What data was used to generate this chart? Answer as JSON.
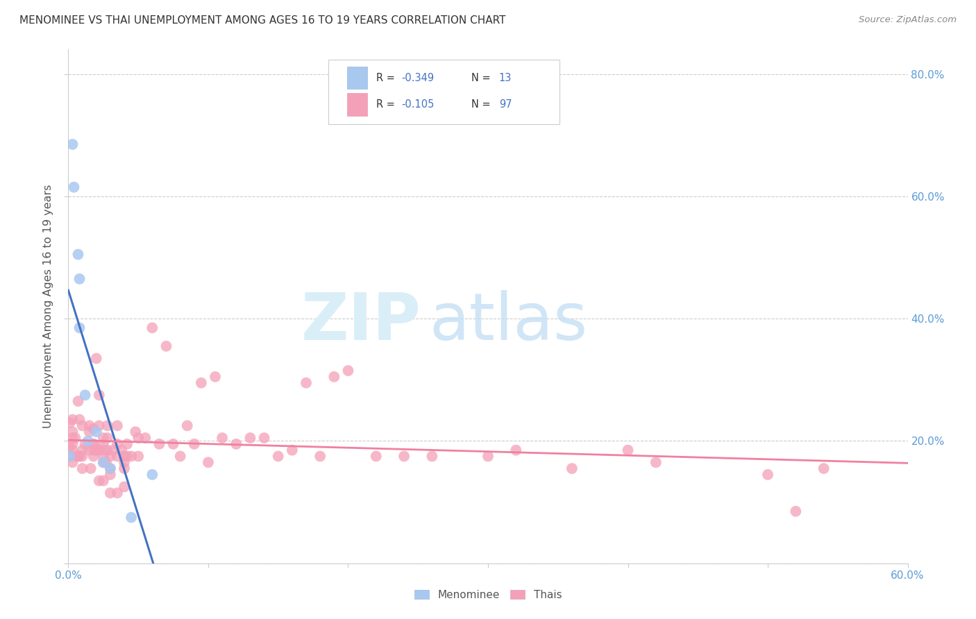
{
  "title": "MENOMINEE VS THAI UNEMPLOYMENT AMONG AGES 16 TO 19 YEARS CORRELATION CHART",
  "source": "Source: ZipAtlas.com",
  "ylabel": "Unemployment Among Ages 16 to 19 years",
  "menominee_color": "#a8c8f0",
  "thai_color": "#f4a0b8",
  "menominee_line_color": "#4472C4",
  "thai_line_color": "#f080a0",
  "dash_color": "#b0b0b0",
  "xmin": 0.0,
  "xmax": 0.6,
  "ymin": 0.0,
  "ymax": 0.84,
  "x_ticks": [
    0.0,
    0.1,
    0.2,
    0.3,
    0.4,
    0.5,
    0.6
  ],
  "y_ticks": [
    0.0,
    0.2,
    0.4,
    0.6,
    0.8
  ],
  "y_tick_labels": [
    "",
    "20.0%",
    "40.0%",
    "60.0%",
    "80.0%"
  ],
  "menominee_points_x": [
    0.001,
    0.003,
    0.004,
    0.007,
    0.008,
    0.008,
    0.012,
    0.014,
    0.02,
    0.025,
    0.03,
    0.045,
    0.06
  ],
  "menominee_points_y": [
    0.175,
    0.685,
    0.615,
    0.505,
    0.465,
    0.385,
    0.275,
    0.2,
    0.215,
    0.165,
    0.155,
    0.075,
    0.145
  ],
  "thai_points_x": [
    0.001,
    0.001,
    0.001,
    0.003,
    0.003,
    0.003,
    0.003,
    0.003,
    0.003,
    0.005,
    0.006,
    0.007,
    0.007,
    0.008,
    0.008,
    0.01,
    0.01,
    0.01,
    0.01,
    0.012,
    0.015,
    0.015,
    0.015,
    0.016,
    0.018,
    0.018,
    0.018,
    0.018,
    0.018,
    0.02,
    0.02,
    0.022,
    0.022,
    0.022,
    0.022,
    0.025,
    0.025,
    0.025,
    0.025,
    0.025,
    0.025,
    0.027,
    0.028,
    0.028,
    0.028,
    0.03,
    0.03,
    0.03,
    0.03,
    0.032,
    0.035,
    0.035,
    0.035,
    0.035,
    0.038,
    0.04,
    0.04,
    0.04,
    0.04,
    0.042,
    0.042,
    0.045,
    0.048,
    0.05,
    0.05,
    0.055,
    0.06,
    0.065,
    0.07,
    0.075,
    0.08,
    0.085,
    0.09,
    0.095,
    0.1,
    0.105,
    0.11,
    0.12,
    0.13,
    0.14,
    0.15,
    0.16,
    0.17,
    0.18,
    0.19,
    0.2,
    0.22,
    0.24,
    0.26,
    0.3,
    0.32,
    0.36,
    0.4,
    0.42,
    0.5,
    0.52,
    0.54
  ],
  "thai_points_y": [
    0.23,
    0.19,
    0.175,
    0.235,
    0.215,
    0.205,
    0.195,
    0.185,
    0.165,
    0.205,
    0.175,
    0.265,
    0.175,
    0.235,
    0.175,
    0.225,
    0.185,
    0.175,
    0.155,
    0.195,
    0.225,
    0.215,
    0.185,
    0.155,
    0.195,
    0.22,
    0.195,
    0.185,
    0.175,
    0.335,
    0.185,
    0.275,
    0.225,
    0.185,
    0.135,
    0.205,
    0.195,
    0.185,
    0.175,
    0.165,
    0.135,
    0.165,
    0.225,
    0.205,
    0.185,
    0.175,
    0.155,
    0.145,
    0.115,
    0.185,
    0.225,
    0.195,
    0.175,
    0.115,
    0.185,
    0.175,
    0.165,
    0.155,
    0.125,
    0.195,
    0.175,
    0.175,
    0.215,
    0.205,
    0.175,
    0.205,
    0.385,
    0.195,
    0.355,
    0.195,
    0.175,
    0.225,
    0.195,
    0.295,
    0.165,
    0.305,
    0.205,
    0.195,
    0.205,
    0.205,
    0.175,
    0.185,
    0.295,
    0.175,
    0.305,
    0.315,
    0.175,
    0.175,
    0.175,
    0.175,
    0.185,
    0.155,
    0.185,
    0.165,
    0.145,
    0.085,
    0.155
  ]
}
